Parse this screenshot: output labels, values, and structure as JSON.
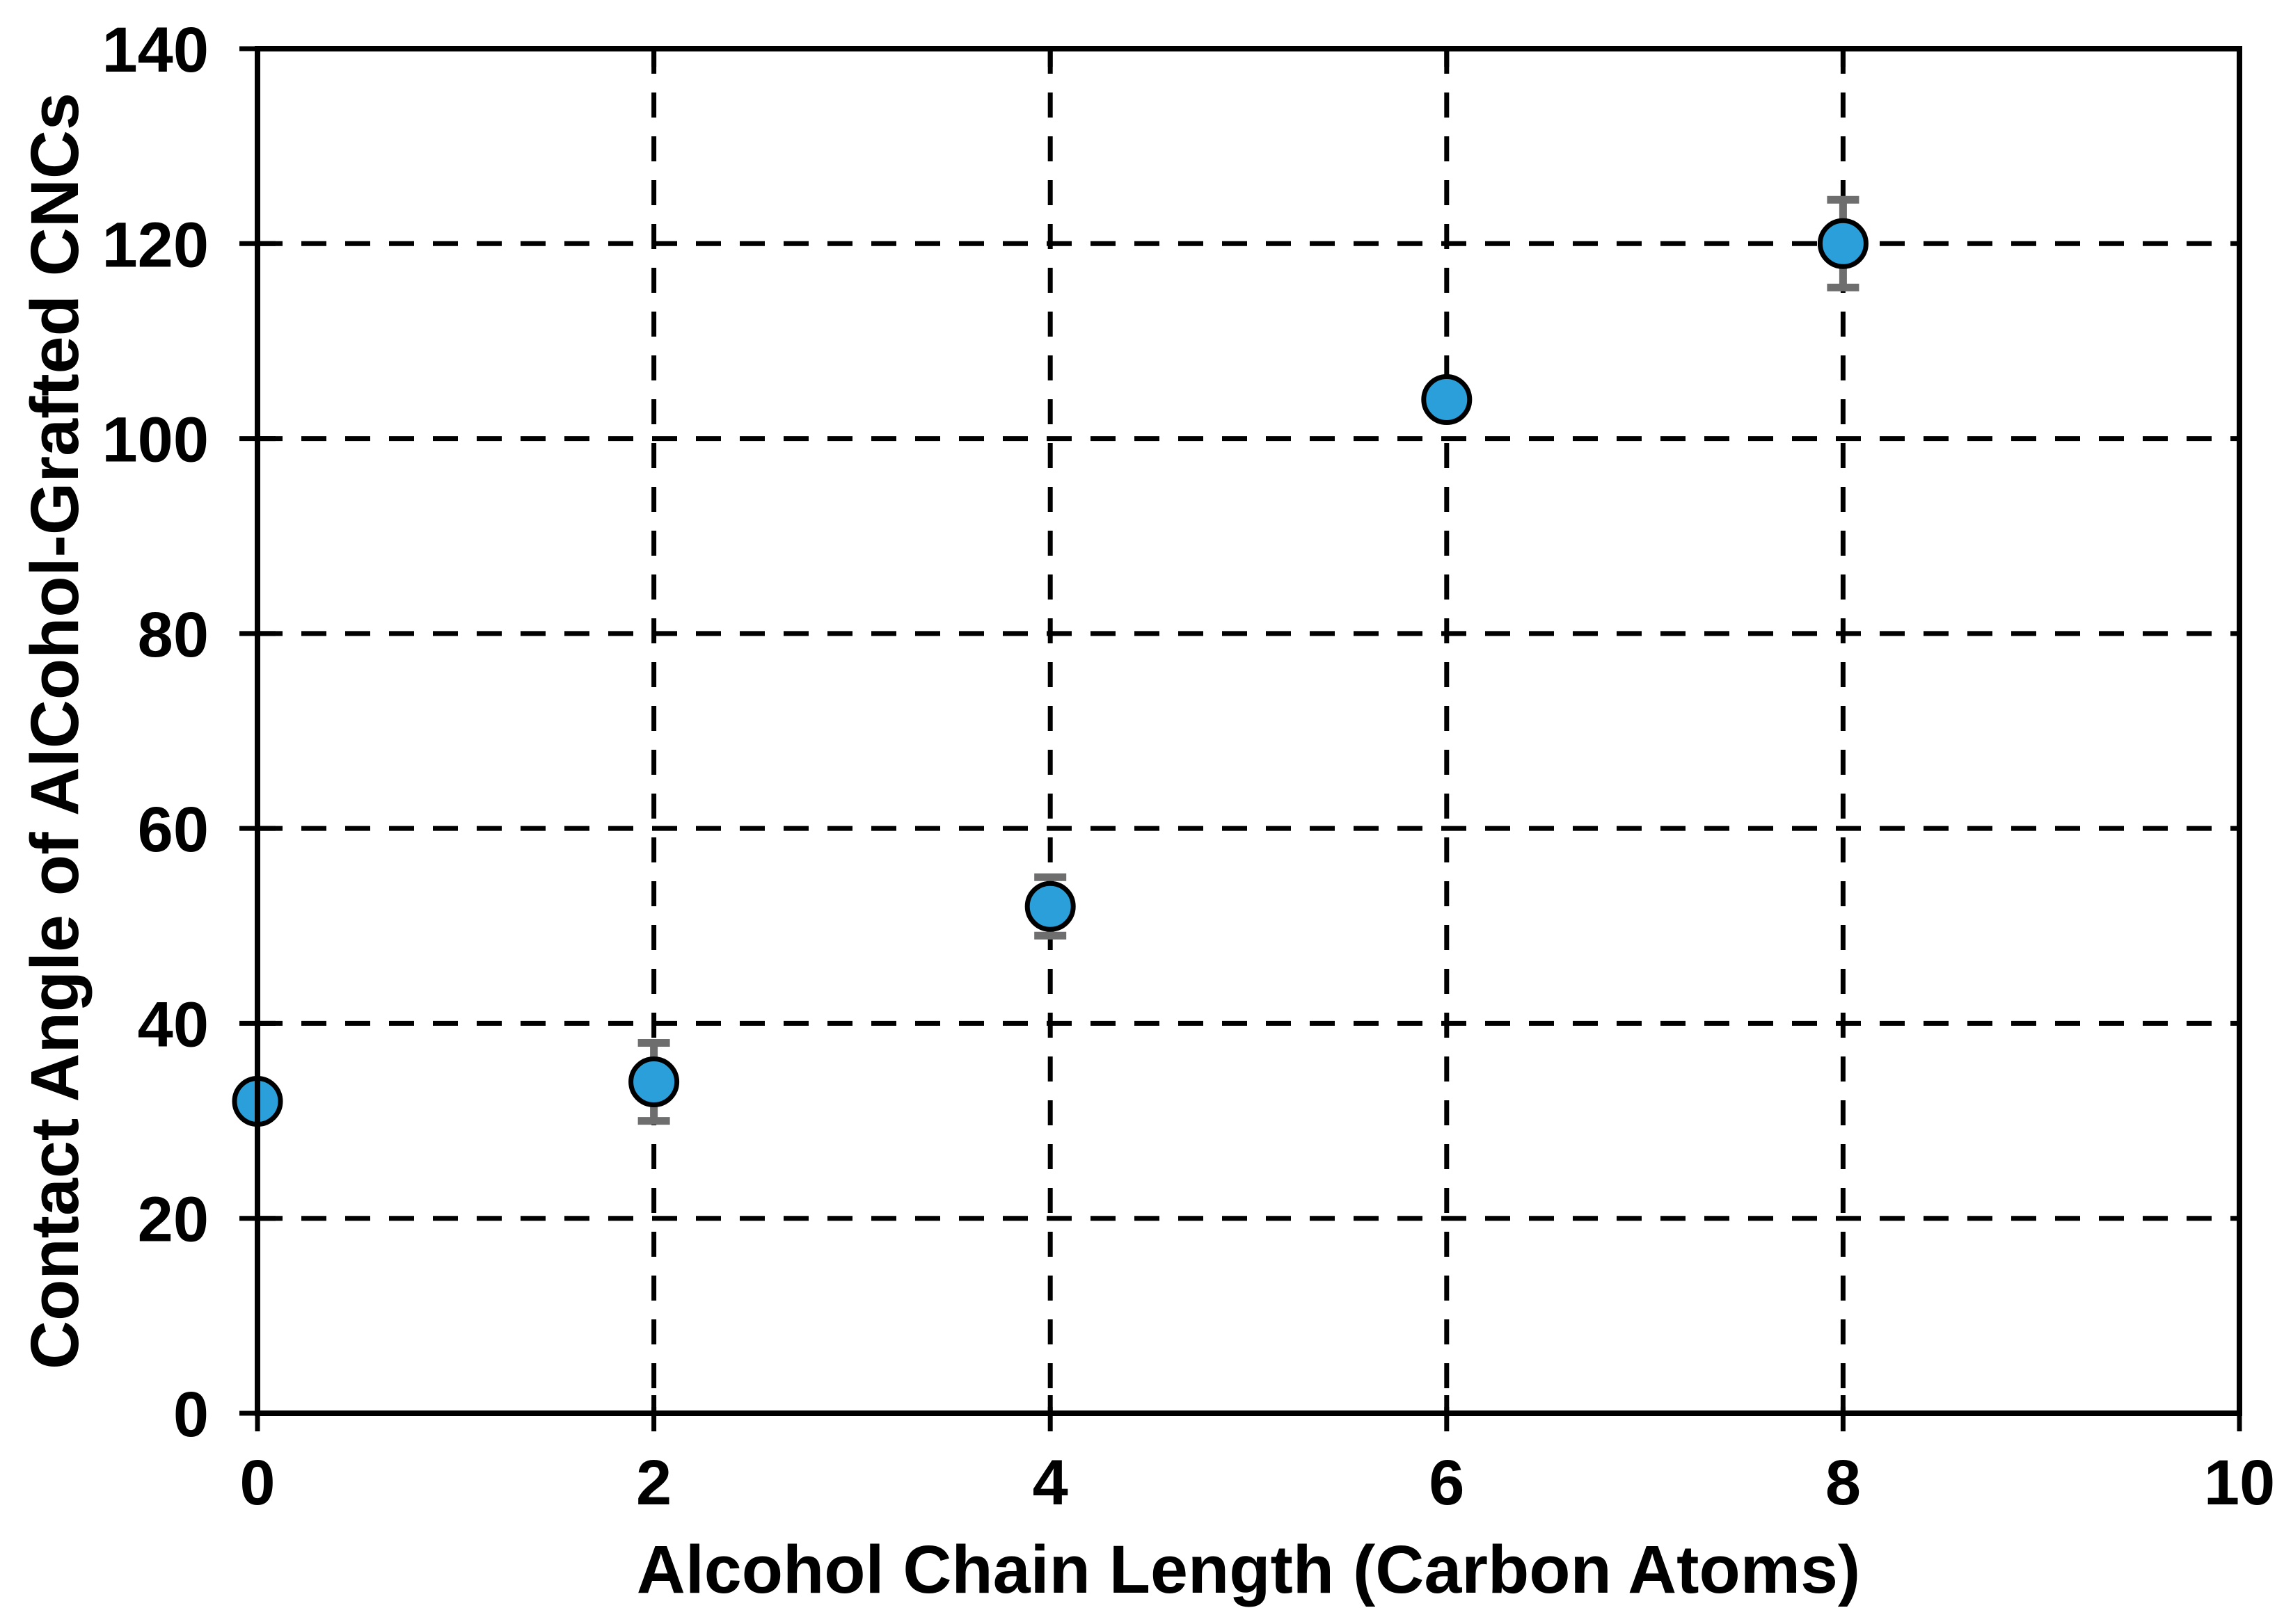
{
  "figure": {
    "background_color": "#ffffff",
    "text_color": "#000000"
  },
  "chart_data": {
    "type": "scatter",
    "title": "",
    "xlabel": "Alcohol Chain Length (Carbon Atoms)",
    "ylabel": "Contact Angle of AlCohol-Grafted CNCs",
    "xlim": [
      0,
      10
    ],
    "ylim": [
      0,
      140
    ],
    "xticks": [
      0,
      2,
      4,
      6,
      8,
      10
    ],
    "yticks": [
      0,
      20,
      40,
      60,
      80,
      100,
      120,
      140
    ],
    "xtick_labels": [
      "0",
      "2",
      "4",
      "6",
      "8",
      "10"
    ],
    "ytick_labels": [
      "0",
      "20",
      "40",
      "60",
      "80",
      "100",
      "120",
      "140"
    ],
    "grid": {
      "style": "dashed",
      "horizontal": true,
      "vertical": true,
      "color": "#000000"
    },
    "legend_position": "none",
    "border": "full-box",
    "series": [
      {
        "name": "alcohol-grafted-CNC-contact-angle",
        "x": [
          0,
          2,
          4,
          6,
          8
        ],
        "y": [
          32,
          34,
          52,
          104,
          120
        ],
        "yerr": [
          0,
          4,
          3,
          0,
          4.5
        ],
        "marker": "circle",
        "marker_fill": "#2B9FD9",
        "marker_stroke": "#000000",
        "errorbar_color": "#6E6E6E"
      }
    ]
  }
}
